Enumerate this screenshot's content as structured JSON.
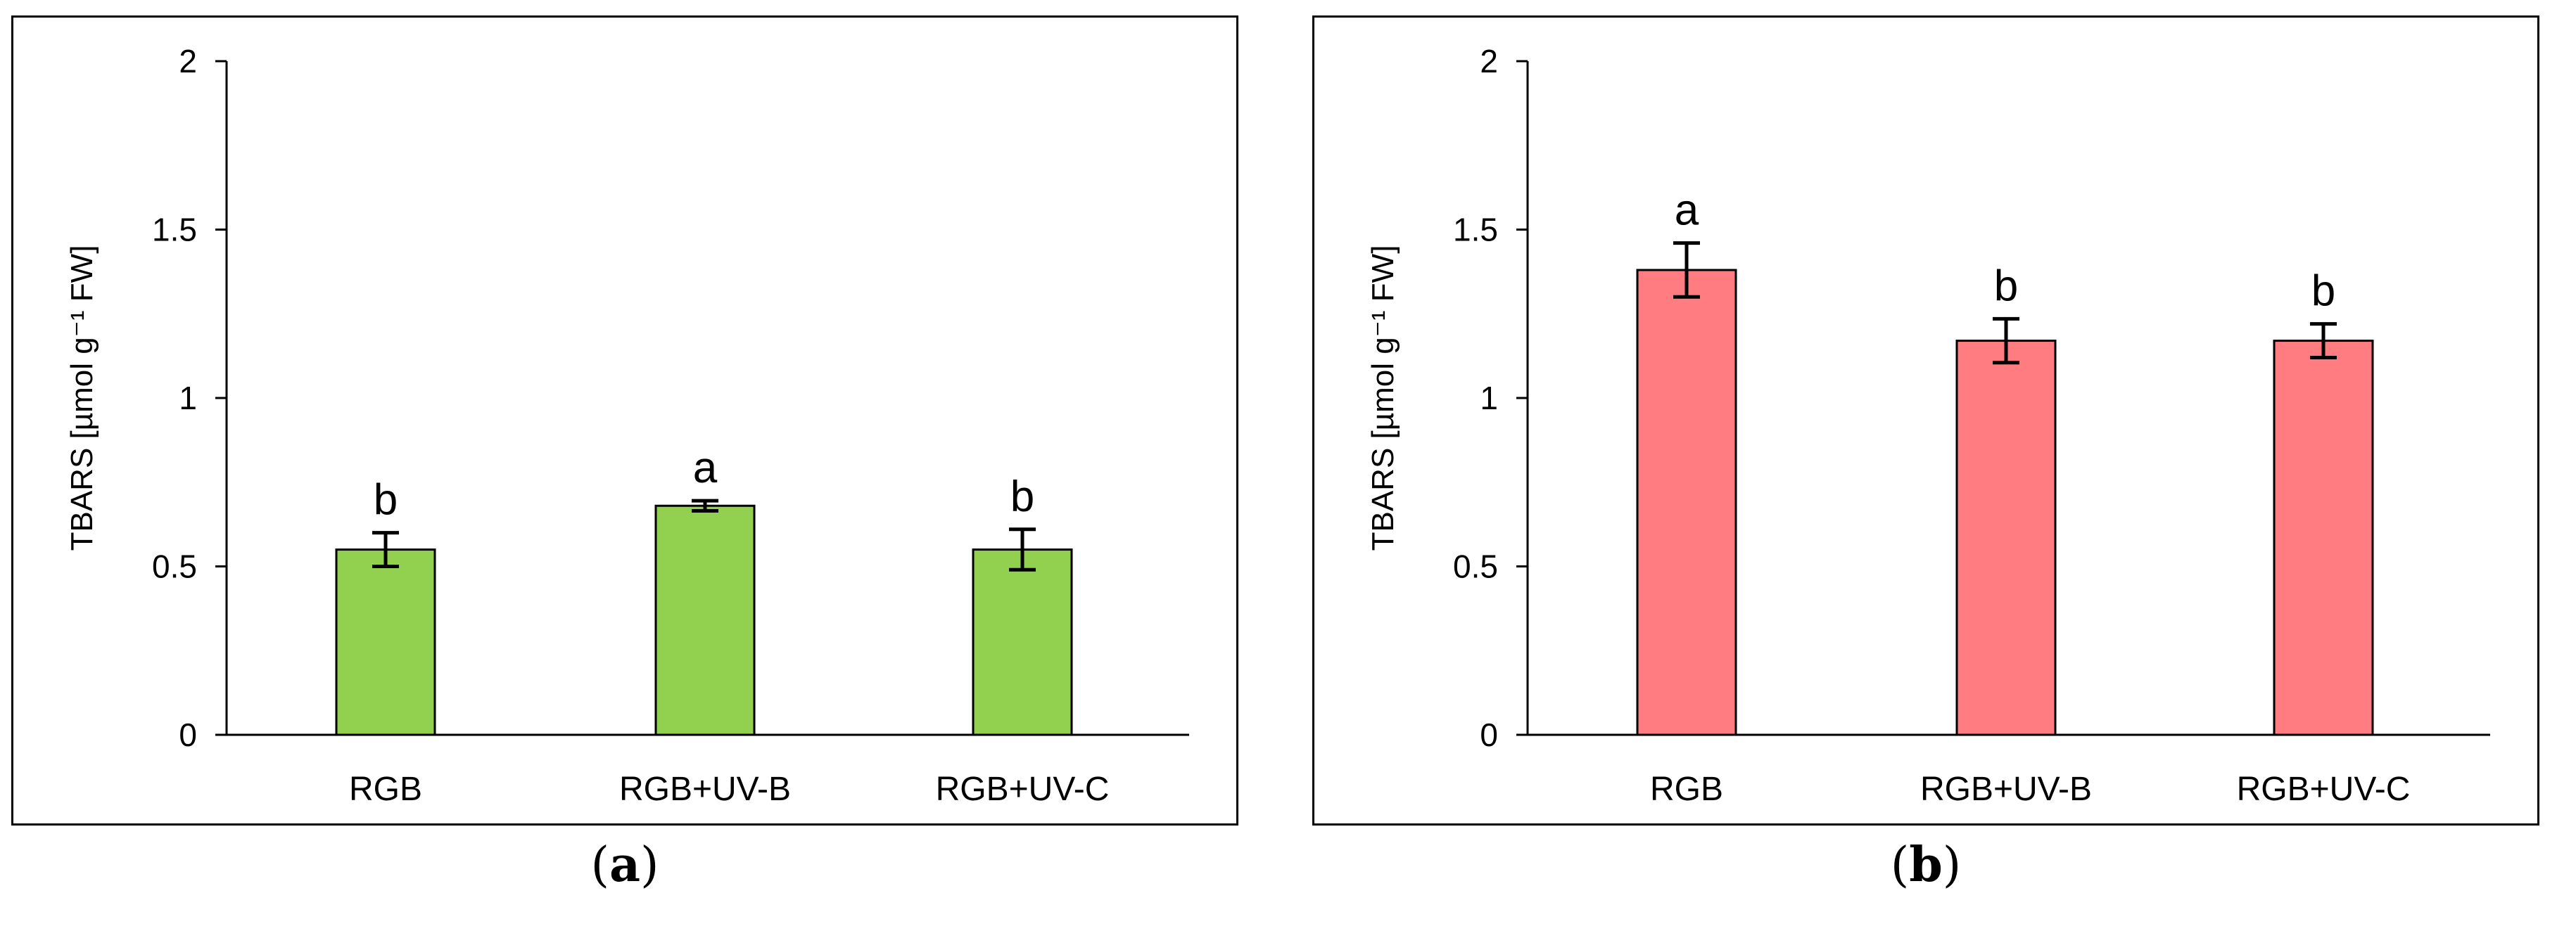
{
  "chart_data": [
    {
      "type": "bar",
      "panel_label": "a",
      "categories": [
        "RGB",
        "RGB+UV-B",
        "RGB+UV-C"
      ],
      "values": [
        0.55,
        0.68,
        0.55
      ],
      "errors": [
        0.05,
        0.015,
        0.06
      ],
      "significance": [
        "b",
        "a",
        "b"
      ],
      "ylabel": "TBARS [µmol g⁻¹ FW]",
      "xlabel": "",
      "ylim": [
        0,
        2
      ],
      "yticks": [
        "0",
        "0.5",
        "1",
        "1.5",
        "2"
      ],
      "bar_color": "#92D050",
      "grid": false
    },
    {
      "type": "bar",
      "panel_label": "b",
      "categories": [
        "RGB",
        "RGB+UV-B",
        "RGB+UV-C"
      ],
      "values": [
        1.38,
        1.17,
        1.17
      ],
      "errors": [
        0.08,
        0.065,
        0.05
      ],
      "significance": [
        "a",
        "b",
        "b"
      ],
      "ylabel": "TBARS [µmol g⁻¹ FW]",
      "xlabel": "",
      "ylim": [
        0,
        2
      ],
      "yticks": [
        "0",
        "0.5",
        "1",
        "1.5",
        "2"
      ],
      "bar_color": "#FF7C80",
      "grid": false
    }
  ],
  "captions": {
    "a": {
      "open": "(",
      "letter": "a",
      "close": ")"
    },
    "b": {
      "open": "(",
      "letter": "b",
      "close": ")"
    }
  }
}
